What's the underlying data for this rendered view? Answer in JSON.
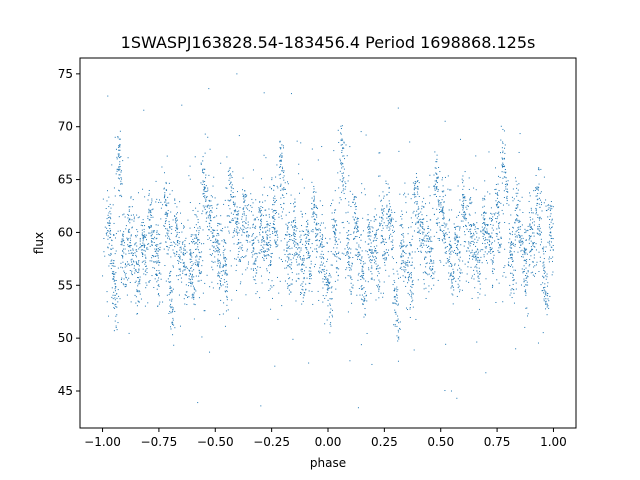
{
  "chart_data": {
    "type": "scatter",
    "title": "1SWASPJ163828.54-183456.4 Period 1698868.125s",
    "xlabel": "phase",
    "ylabel": "flux",
    "xlim": [
      -1.1,
      1.1
    ],
    "ylim": [
      41.5,
      76.5
    ],
    "xticks": [
      -1.0,
      -0.75,
      -0.5,
      -0.25,
      0.0,
      0.25,
      0.5,
      0.75,
      1.0
    ],
    "xtick_labels": [
      "−1.00",
      "−0.75",
      "−0.50",
      "−0.25",
      "0.00",
      "0.25",
      "0.50",
      "0.75",
      "1.00"
    ],
    "yticks": [
      45,
      50,
      55,
      60,
      65,
      70,
      75
    ],
    "ytick_labels": [
      "45",
      "50",
      "55",
      "60",
      "65",
      "70",
      "75"
    ],
    "grid": false,
    "marker_color": "#1f77b4",
    "phase_range": [
      -1.0,
      1.0
    ],
    "flux_center": 59.5,
    "flux_spread": [
      43,
      75
    ],
    "clusters": [
      {
        "x": -0.97,
        "y": 60.5
      },
      {
        "x": -0.95,
        "y": 55.0
      },
      {
        "x": -0.93,
        "y": 67.5
      },
      {
        "x": -0.91,
        "y": 58.5
      },
      {
        "x": -0.88,
        "y": 60.0
      },
      {
        "x": -0.85,
        "y": 57.0
      },
      {
        "x": -0.82,
        "y": 59.5
      },
      {
        "x": -0.79,
        "y": 61.0
      },
      {
        "x": -0.76,
        "y": 58.0
      },
      {
        "x": -0.72,
        "y": 62.5
      },
      {
        "x": -0.7,
        "y": 54.0
      },
      {
        "x": -0.67,
        "y": 60.0
      },
      {
        "x": -0.64,
        "y": 58.0
      },
      {
        "x": -0.61,
        "y": 56.5
      },
      {
        "x": -0.58,
        "y": 59.0
      },
      {
        "x": -0.55,
        "y": 64.5
      },
      {
        "x": -0.52,
        "y": 61.5
      },
      {
        "x": -0.49,
        "y": 58.5
      },
      {
        "x": -0.46,
        "y": 57.0
      },
      {
        "x": -0.43,
        "y": 64.0
      },
      {
        "x": -0.4,
        "y": 60.5
      },
      {
        "x": -0.37,
        "y": 62.0
      },
      {
        "x": -0.33,
        "y": 59.0
      },
      {
        "x": -0.3,
        "y": 61.0
      },
      {
        "x": -0.27,
        "y": 59.5
      },
      {
        "x": -0.24,
        "y": 62.5
      },
      {
        "x": -0.21,
        "y": 66.5
      },
      {
        "x": -0.18,
        "y": 58.0
      },
      {
        "x": -0.15,
        "y": 60.5
      },
      {
        "x": -0.12,
        "y": 57.5
      },
      {
        "x": -0.09,
        "y": 59.0
      },
      {
        "x": -0.06,
        "y": 62.0
      },
      {
        "x": -0.03,
        "y": 58.5
      },
      {
        "x": 0.0,
        "y": 55.5
      },
      {
        "x": 0.03,
        "y": 60.0
      },
      {
        "x": 0.06,
        "y": 67.5
      },
      {
        "x": 0.09,
        "y": 58.0
      },
      {
        "x": 0.12,
        "y": 61.0
      },
      {
        "x": 0.15,
        "y": 56.0
      },
      {
        "x": 0.18,
        "y": 59.5
      },
      {
        "x": 0.21,
        "y": 58.5
      },
      {
        "x": 0.24,
        "y": 60.5
      },
      {
        "x": 0.27,
        "y": 62.0
      },
      {
        "x": 0.3,
        "y": 54.0
      },
      {
        "x": 0.33,
        "y": 59.0
      },
      {
        "x": 0.36,
        "y": 57.0
      },
      {
        "x": 0.39,
        "y": 63.5
      },
      {
        "x": 0.42,
        "y": 60.0
      },
      {
        "x": 0.45,
        "y": 58.5
      },
      {
        "x": 0.48,
        "y": 65.0
      },
      {
        "x": 0.51,
        "y": 61.5
      },
      {
        "x": 0.54,
        "y": 57.5
      },
      {
        "x": 0.57,
        "y": 59.0
      },
      {
        "x": 0.6,
        "y": 63.5
      },
      {
        "x": 0.63,
        "y": 60.5
      },
      {
        "x": 0.66,
        "y": 58.0
      },
      {
        "x": 0.69,
        "y": 61.0
      },
      {
        "x": 0.72,
        "y": 59.5
      },
      {
        "x": 0.75,
        "y": 62.0
      },
      {
        "x": 0.78,
        "y": 66.5
      },
      {
        "x": 0.81,
        "y": 58.0
      },
      {
        "x": 0.84,
        "y": 61.5
      },
      {
        "x": 0.87,
        "y": 57.5
      },
      {
        "x": 0.9,
        "y": 60.0
      },
      {
        "x": 0.93,
        "y": 63.0
      },
      {
        "x": 0.96,
        "y": 56.0
      },
      {
        "x": 0.99,
        "y": 60.5
      }
    ]
  }
}
